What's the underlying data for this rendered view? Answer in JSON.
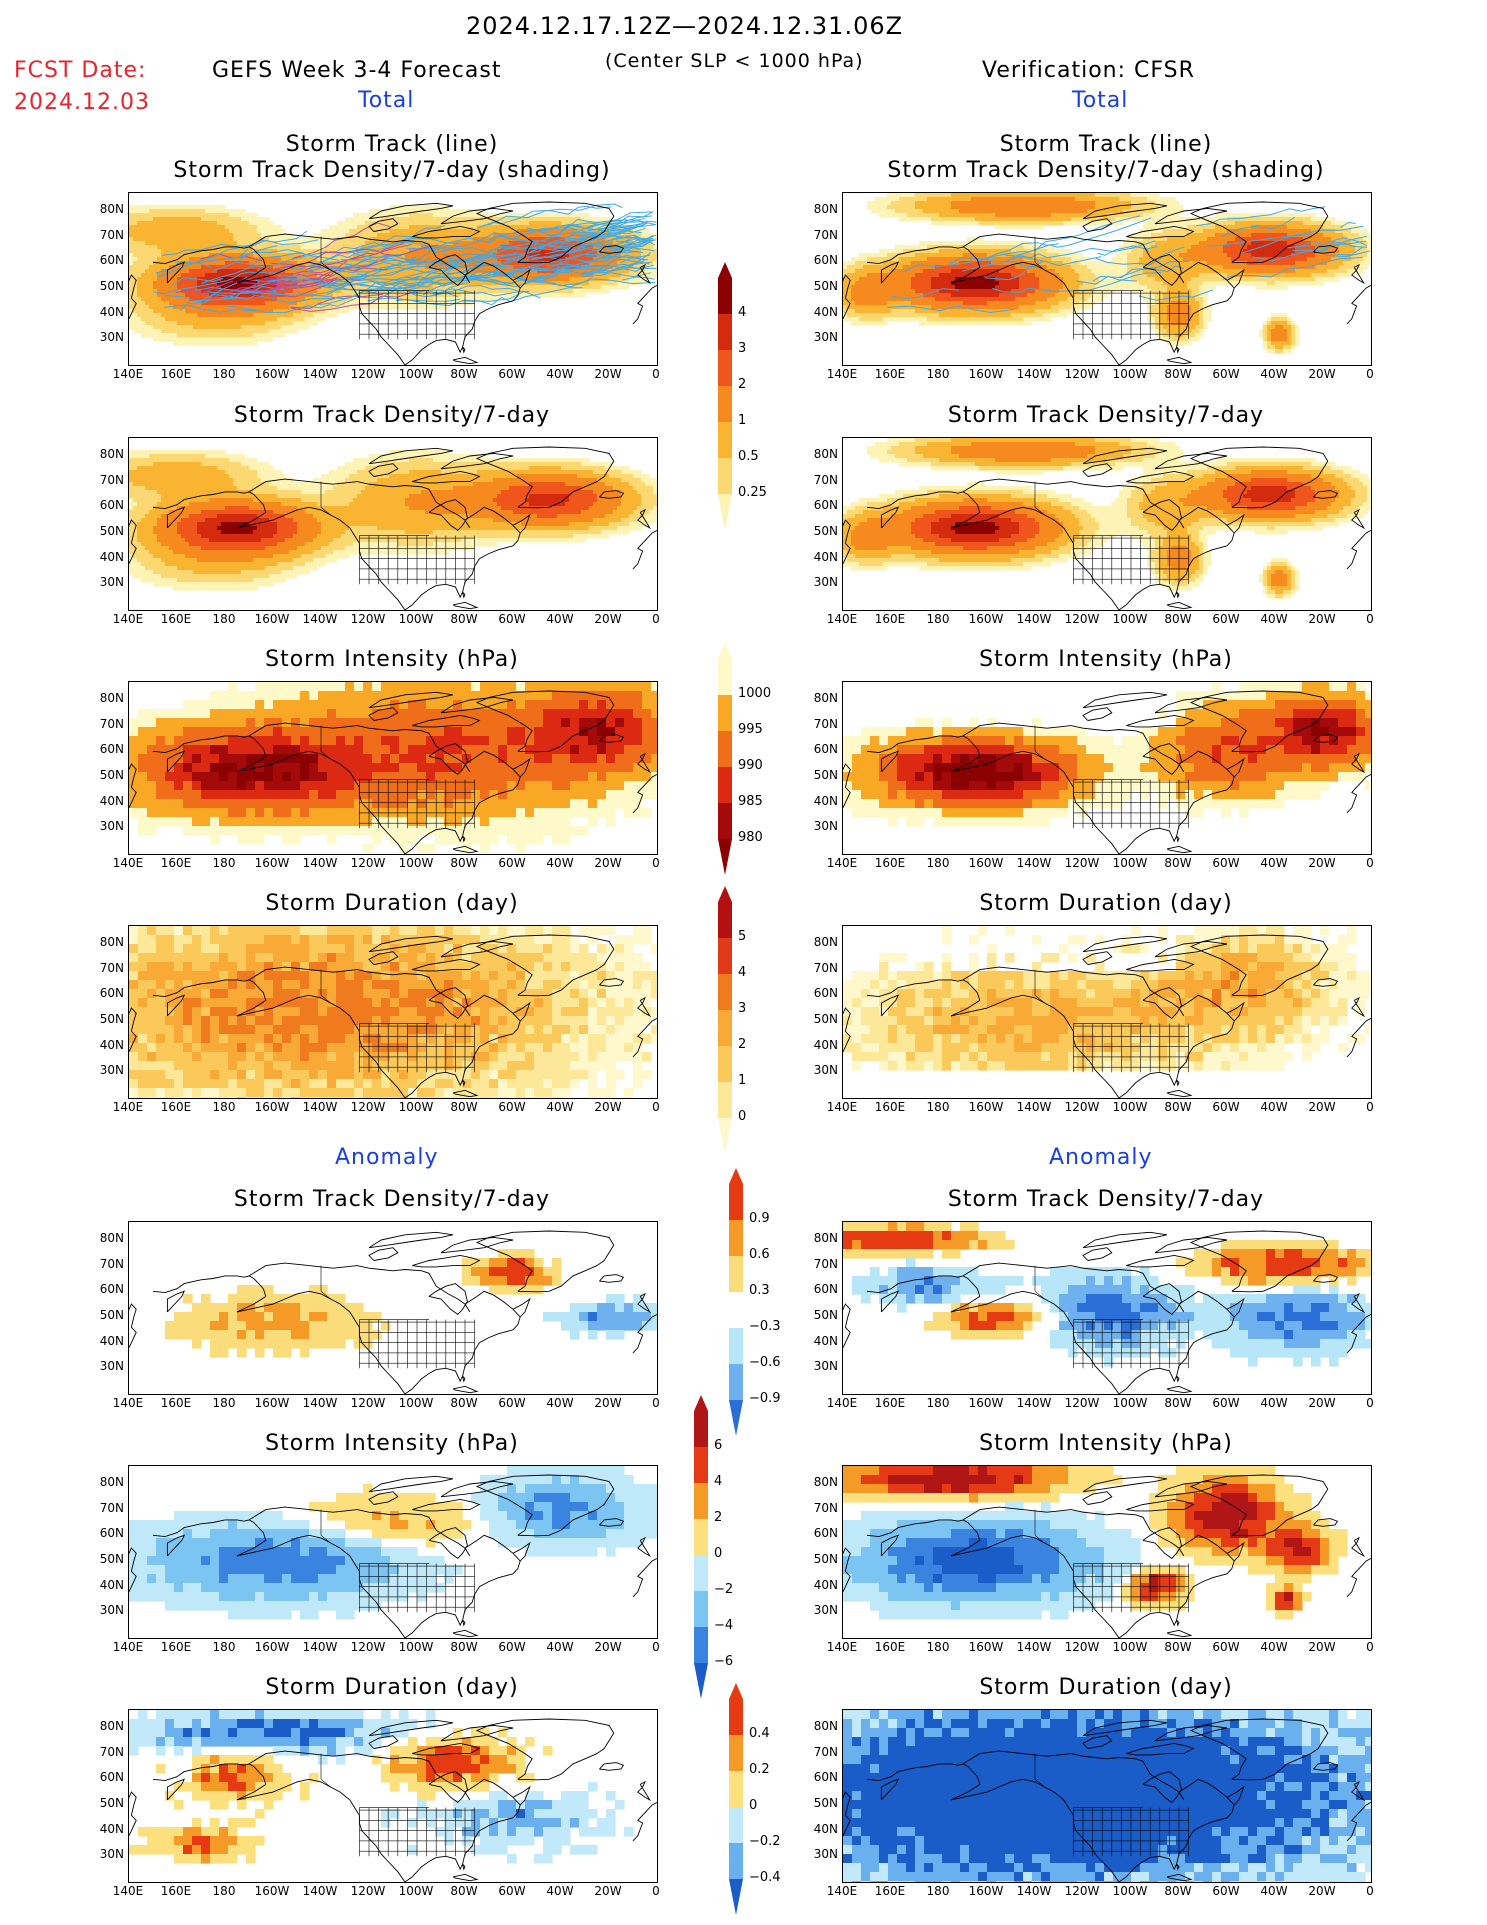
{
  "header": {
    "period": "2024.12.17.12Z—2024.12.31.06Z",
    "fcst_label": "FCST Date:",
    "fcst_date": "2024.12.03",
    "model": "GEFS Week 3-4 Forecast",
    "criterion": "(Center SLP < 1000 hPa)",
    "verification": "Verification: CFSR"
  },
  "sections": {
    "total": "Total",
    "anomaly": "Anomaly"
  },
  "panel_titles": {
    "track_line": "Storm Track (line)",
    "track_shading": "Storm Track Density/7-day (shading)",
    "density": "Storm Track Density/7-day",
    "intensity": "Storm Intensity (hPa)",
    "duration": "Storm Duration (day)"
  },
  "axes": {
    "lat_labels": [
      "80N",
      "70N",
      "60N",
      "50N",
      "40N",
      "30N"
    ],
    "lon_labels": [
      "140E",
      "160E",
      "180",
      "160W",
      "140W",
      "120W",
      "100W",
      "80W",
      "60W",
      "40W",
      "20W",
      "0"
    ]
  },
  "colorbars": {
    "density": {
      "labels": [
        "4",
        "3",
        "2",
        "1",
        "0.5",
        "0.25"
      ],
      "colors": [
        "#8b0000",
        "#d42a0e",
        "#f0561c",
        "#f78a1e",
        "#f9b432",
        "#fcd873",
        "#fdf3b4"
      ]
    },
    "intensity": {
      "labels": [
        "1000",
        "995",
        "990",
        "985",
        "980"
      ],
      "colors": [
        "#fef9c9",
        "#f8a825",
        "#f06e1a",
        "#dc2a12",
        "#a50a0a",
        "#8b0000"
      ]
    },
    "duration": {
      "labels": [
        "5",
        "4",
        "3",
        "2",
        "1",
        "0"
      ],
      "colors": [
        "#b31010",
        "#e03a18",
        "#f07a1e",
        "#f9a935",
        "#fbc85a",
        "#fde89a",
        "#fff8cc"
      ]
    },
    "anom_density": {
      "labels": [
        "0.9",
        "0.6",
        "0.3",
        "−0.3",
        "−0.6",
        "−0.9"
      ],
      "colors": [
        "#e63a12",
        "#f59a26",
        "#fbdc7a",
        "#ffffff",
        "#b7e6f8",
        "#6fb0ee",
        "#2a6ed8"
      ]
    },
    "anom_intensity": {
      "labels": [
        "6",
        "4",
        "2",
        "0",
        "−2",
        "−4",
        "−6"
      ],
      "colors": [
        "#b01616",
        "#e53a16",
        "#f59a26",
        "#fce07e",
        "#bfe8f8",
        "#7cc4f2",
        "#3a84e0",
        "#1a5cc8"
      ]
    },
    "anom_duration": {
      "labels": [
        "0.4",
        "0.2",
        "0",
        "−0.2",
        "−0.4"
      ],
      "colors": [
        "#e63a12",
        "#f59a26",
        "#fde07e",
        "#c2e9f9",
        "#6ab0ee",
        "#1a5cc8"
      ]
    }
  },
  "colors": {
    "track_line": "#3fa9e8",
    "track_line_dense": "#b84c9e",
    "coastline": "#000000"
  }
}
